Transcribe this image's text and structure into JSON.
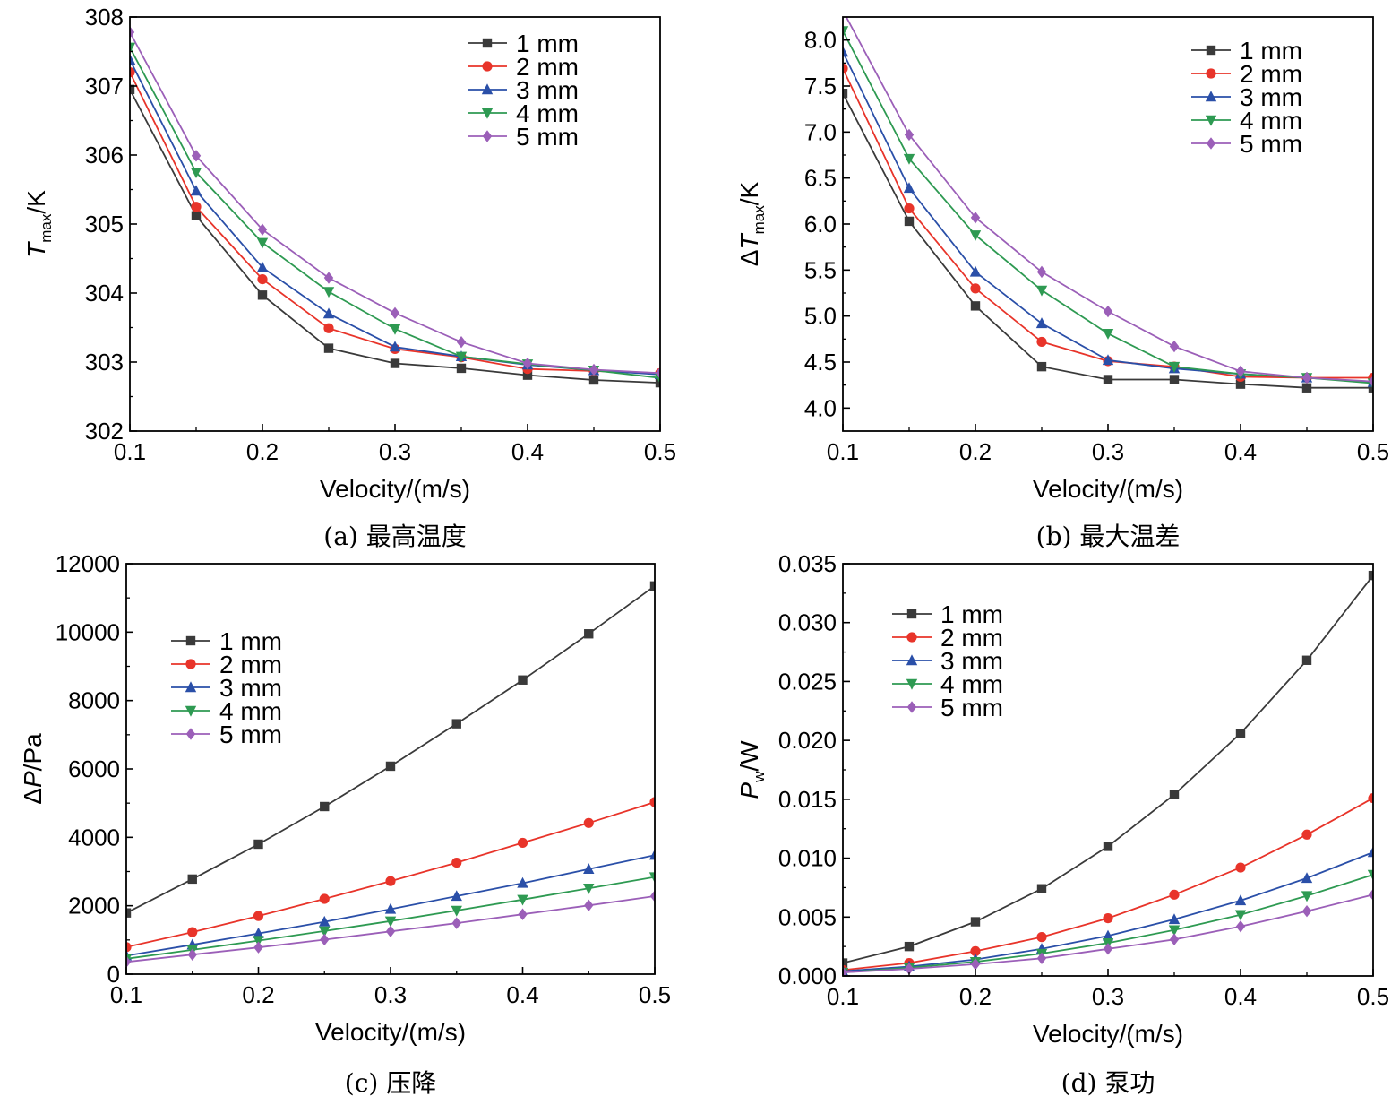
{
  "chart_data": [
    {
      "panel": "a",
      "type": "line",
      "caption": "(a) 最高温度",
      "xlabel": "Velocity/(m/s)",
      "ylabel": {
        "main": "T",
        "sub": "max",
        "suffix": "/K",
        "main_italic": true
      },
      "xlim": [
        0.1,
        0.5
      ],
      "ylim": [
        302,
        308
      ],
      "xticks": [
        0.1,
        0.2,
        0.3,
        0.4,
        0.5
      ],
      "yticks": [
        302,
        303,
        304,
        305,
        306,
        307,
        308
      ],
      "ytick_decimals": 0,
      "legend_position": "top-right",
      "x": [
        0.1,
        0.15,
        0.2,
        0.25,
        0.3,
        0.35,
        0.4,
        0.45,
        0.5
      ],
      "series": [
        {
          "name": "1 mm",
          "values": [
            306.95,
            305.12,
            303.97,
            303.2,
            302.98,
            302.91,
            302.81,
            302.74,
            302.7
          ]
        },
        {
          "name": "2 mm",
          "values": [
            307.2,
            305.25,
            304.2,
            303.49,
            303.19,
            303.07,
            302.9,
            302.87,
            302.84
          ]
        },
        {
          "name": "3 mm",
          "values": [
            307.38,
            305.48,
            304.37,
            303.7,
            303.22,
            303.08,
            302.96,
            302.88,
            302.82
          ]
        },
        {
          "name": "4 mm",
          "values": [
            307.56,
            305.75,
            304.73,
            304.02,
            303.48,
            303.08,
            302.97,
            302.88,
            302.77
          ]
        },
        {
          "name": "5 mm",
          "values": [
            307.78,
            305.99,
            304.92,
            304.22,
            303.71,
            303.29,
            302.98,
            302.89,
            302.84
          ]
        }
      ]
    },
    {
      "panel": "b",
      "type": "line",
      "caption": "(b) 最大温差",
      "xlabel": "Velocity/(m/s)",
      "ylabel": {
        "main": "ΔT",
        "sub": "max",
        "suffix": "/K",
        "main_italic": true
      },
      "xlim": [
        0.1,
        0.5
      ],
      "ylim": [
        3.75,
        8.25
      ],
      "xticks": [
        0.1,
        0.2,
        0.3,
        0.4,
        0.5
      ],
      "yticks": [
        4.0,
        4.5,
        5.0,
        5.5,
        6.0,
        6.5,
        7.0,
        7.5,
        8.0
      ],
      "ytick_decimals": 1,
      "legend_position": "top-right",
      "x": [
        0.1,
        0.15,
        0.2,
        0.25,
        0.3,
        0.35,
        0.4,
        0.45,
        0.5
      ],
      "series": [
        {
          "name": "1 mm",
          "values": [
            7.42,
            6.03,
            5.11,
            4.45,
            4.31,
            4.31,
            4.26,
            4.22,
            4.22
          ]
        },
        {
          "name": "2 mm",
          "values": [
            7.69,
            6.17,
            5.3,
            4.72,
            4.51,
            4.45,
            4.34,
            4.33,
            4.33
          ]
        },
        {
          "name": "3 mm",
          "values": [
            7.87,
            6.39,
            5.48,
            4.92,
            4.52,
            4.43,
            4.37,
            4.33,
            4.28
          ]
        },
        {
          "name": "4 mm",
          "values": [
            8.1,
            6.71,
            5.88,
            5.28,
            4.81,
            4.45,
            4.37,
            4.33,
            4.27
          ]
        },
        {
          "name": "5 mm",
          "values": [
            8.32,
            6.97,
            6.07,
            5.48,
            5.05,
            4.67,
            4.4,
            4.33,
            4.29
          ]
        }
      ]
    },
    {
      "panel": "c",
      "type": "line",
      "caption": "(c) 压降",
      "xlabel": "Velocity/(m/s)",
      "ylabel": {
        "main": "ΔP",
        "sub": "",
        "suffix": "/Pa",
        "main_italic": true
      },
      "xlim": [
        0.1,
        0.5
      ],
      "ylim": [
        0,
        12000
      ],
      "xticks": [
        0.1,
        0.2,
        0.3,
        0.4,
        0.5
      ],
      "yticks": [
        0,
        2000,
        4000,
        6000,
        8000,
        10000,
        12000
      ],
      "ytick_decimals": 0,
      "legend_position": "top-left",
      "x": [
        0.1,
        0.15,
        0.2,
        0.25,
        0.3,
        0.35,
        0.4,
        0.45,
        0.5
      ],
      "series": [
        {
          "name": "1 mm",
          "values": [
            1790,
            2780,
            3800,
            4900,
            6080,
            7320,
            8600,
            9950,
            11350
          ]
        },
        {
          "name": "2 mm",
          "values": [
            790,
            1230,
            1700,
            2200,
            2720,
            3260,
            3840,
            4420,
            5030
          ]
        },
        {
          "name": "3 mm",
          "values": [
            540,
            860,
            1190,
            1530,
            1900,
            2280,
            2660,
            3070,
            3480
          ]
        },
        {
          "name": "4 mm",
          "values": [
            450,
            710,
            980,
            1260,
            1550,
            1860,
            2180,
            2510,
            2840
          ]
        },
        {
          "name": "5 mm",
          "values": [
            360,
            570,
            780,
            1010,
            1250,
            1490,
            1750,
            2010,
            2280
          ]
        }
      ]
    },
    {
      "panel": "d",
      "type": "line",
      "caption": "(d) 泵功",
      "xlabel": "Velocity/(m/s)",
      "ylabel": {
        "main": "P",
        "sub": "w",
        "suffix": "/W",
        "main_italic": true
      },
      "xlim": [
        0.1,
        0.5
      ],
      "ylim": [
        0,
        0.035
      ],
      "xticks": [
        0.1,
        0.2,
        0.3,
        0.4,
        0.5
      ],
      "yticks": [
        0.0,
        0.005,
        0.01,
        0.015,
        0.02,
        0.025,
        0.03,
        0.035
      ],
      "ytick_decimals": 3,
      "legend_position": "top-left",
      "x": [
        0.1,
        0.15,
        0.2,
        0.25,
        0.3,
        0.35,
        0.4,
        0.45,
        0.5
      ],
      "series": [
        {
          "name": "1 mm",
          "values": [
            0.0011,
            0.0025,
            0.0046,
            0.0074,
            0.011,
            0.0154,
            0.0206,
            0.0268,
            0.034
          ]
        },
        {
          "name": "2 mm",
          "values": [
            0.0005,
            0.0011,
            0.0021,
            0.0033,
            0.0049,
            0.0069,
            0.0092,
            0.012,
            0.0151
          ]
        },
        {
          "name": "3 mm",
          "values": [
            0.0004,
            0.0008,
            0.0014,
            0.0023,
            0.0034,
            0.0048,
            0.0064,
            0.0083,
            0.0105
          ]
        },
        {
          "name": "4 mm",
          "values": [
            0.0003,
            0.0007,
            0.0012,
            0.0019,
            0.0028,
            0.0039,
            0.0052,
            0.0068,
            0.0086
          ]
        },
        {
          "name": "5 mm",
          "values": [
            0.0003,
            0.0006,
            0.001,
            0.0015,
            0.0023,
            0.0031,
            0.0042,
            0.0055,
            0.0069
          ]
        }
      ]
    }
  ],
  "series_styles": [
    {
      "color": "#3a3a3a",
      "marker": "square"
    },
    {
      "color": "#e8342a",
      "marker": "circle"
    },
    {
      "color": "#2a4fa8",
      "marker": "triangle-up"
    },
    {
      "color": "#2e9a52",
      "marker": "triangle-down"
    },
    {
      "color": "#9b5fb8",
      "marker": "diamond"
    }
  ]
}
